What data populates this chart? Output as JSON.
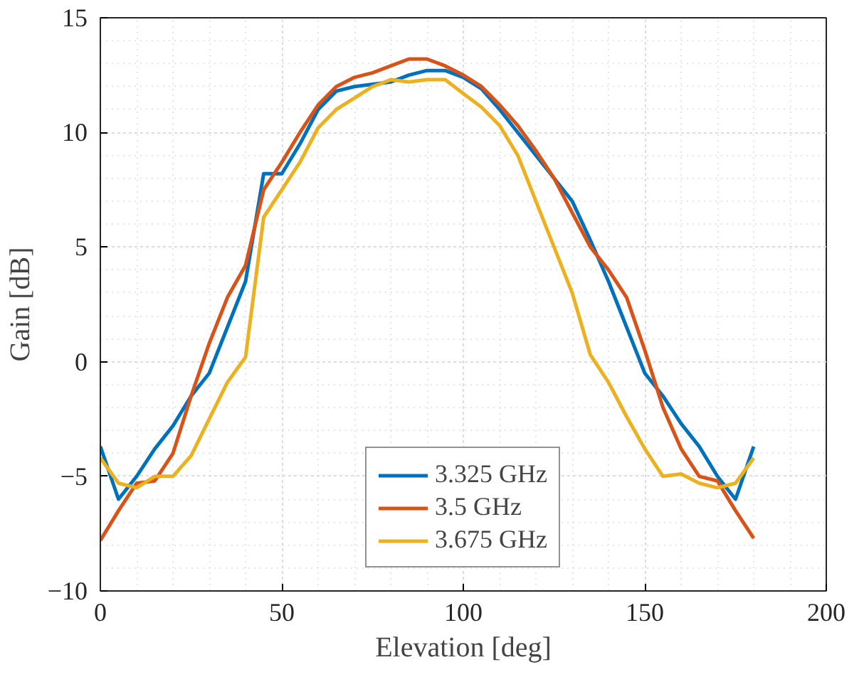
{
  "chart_data": {
    "type": "line",
    "xlabel": "Elevation [deg]",
    "ylabel": "Gain [dB]",
    "x": [
      0,
      5,
      10,
      15,
      20,
      25,
      30,
      35,
      40,
      45,
      50,
      55,
      60,
      65,
      70,
      75,
      80,
      85,
      90,
      95,
      100,
      105,
      110,
      115,
      120,
      125,
      130,
      135,
      140,
      145,
      150,
      155,
      160,
      165,
      170,
      175,
      180
    ],
    "series": [
      {
        "name": "3.325 GHz",
        "color": "#0072bd",
        "values": [
          -3.7,
          -6.0,
          -5.0,
          -3.8,
          -2.8,
          -1.5,
          -0.5,
          1.5,
          3.5,
          8.2,
          8.2,
          9.5,
          11.0,
          11.8,
          12.0,
          12.1,
          12.2,
          12.5,
          12.7,
          12.7,
          12.4,
          11.9,
          11.0,
          10.0,
          9.0,
          8.0,
          7.0,
          5.3,
          3.5,
          1.5,
          -0.5,
          -1.5,
          -2.7,
          -3.7,
          -5.0,
          -6.0,
          -3.7
        ]
      },
      {
        "name": "3.5 GHz",
        "color": "#d95319",
        "values": [
          -7.8,
          -6.5,
          -5.3,
          -5.2,
          -4.0,
          -1.5,
          0.8,
          2.8,
          4.2,
          7.5,
          8.7,
          10.0,
          11.2,
          12.0,
          12.4,
          12.6,
          12.9,
          13.2,
          13.2,
          12.9,
          12.5,
          12.0,
          11.2,
          10.3,
          9.2,
          8.0,
          6.5,
          5.0,
          4.0,
          2.8,
          0.5,
          -2.0,
          -3.8,
          -5.0,
          -5.2,
          -6.5,
          -7.7
        ]
      },
      {
        "name": "3.675 GHz",
        "color": "#edb120",
        "values": [
          -4.2,
          -5.3,
          -5.5,
          -5.0,
          -5.0,
          -4.1,
          -2.5,
          -0.9,
          0.2,
          6.3,
          7.5,
          8.7,
          10.2,
          11.0,
          11.5,
          12.0,
          12.3,
          12.2,
          12.3,
          12.3,
          11.7,
          11.1,
          10.3,
          9.0,
          7.0,
          5.0,
          3.0,
          0.3,
          -0.9,
          -2.4,
          -3.8,
          -5.0,
          -4.9,
          -5.3,
          -5.5,
          -5.3,
          -4.2
        ]
      }
    ],
    "xlim": [
      0,
      200
    ],
    "ylim": [
      -10,
      15
    ],
    "xticks": [
      0,
      50,
      100,
      150,
      200
    ],
    "yticks": [
      -10,
      -5,
      0,
      5,
      10,
      15
    ],
    "grid": true,
    "legend": "bottom",
    "line_style": "solid"
  }
}
